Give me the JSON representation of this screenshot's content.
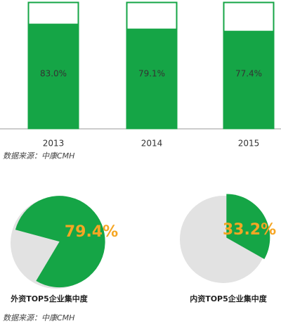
{
  "chart_data": [
    {
      "type": "bar",
      "categories": [
        "2013",
        "2014",
        "2015"
      ],
      "series": [
        {
          "color": "#15a546",
          "values": [
            83.0,
            79.1,
            77.4
          ],
          "value_labels": [
            "83.0%",
            "79.1%",
            "77.4%"
          ]
        }
      ],
      "ylim": [
        0,
        100
      ],
      "source": "数据来源：中康CMH"
    },
    {
      "type": "pie",
      "title": "外资TOP5企业集中度",
      "values": [
        79.4
      ],
      "value_labels": [
        "79.4%"
      ],
      "color": "#15a546",
      "rest_color": "#e2e2e2"
    },
    {
      "type": "pie",
      "title": "内资TOP5企业集中度",
      "values": [
        33.2
      ],
      "value_labels": [
        "33.2%"
      ],
      "color": "#15a546",
      "rest_color": "#e2e2e2",
      "source": "数据来源：中康CMH"
    }
  ]
}
